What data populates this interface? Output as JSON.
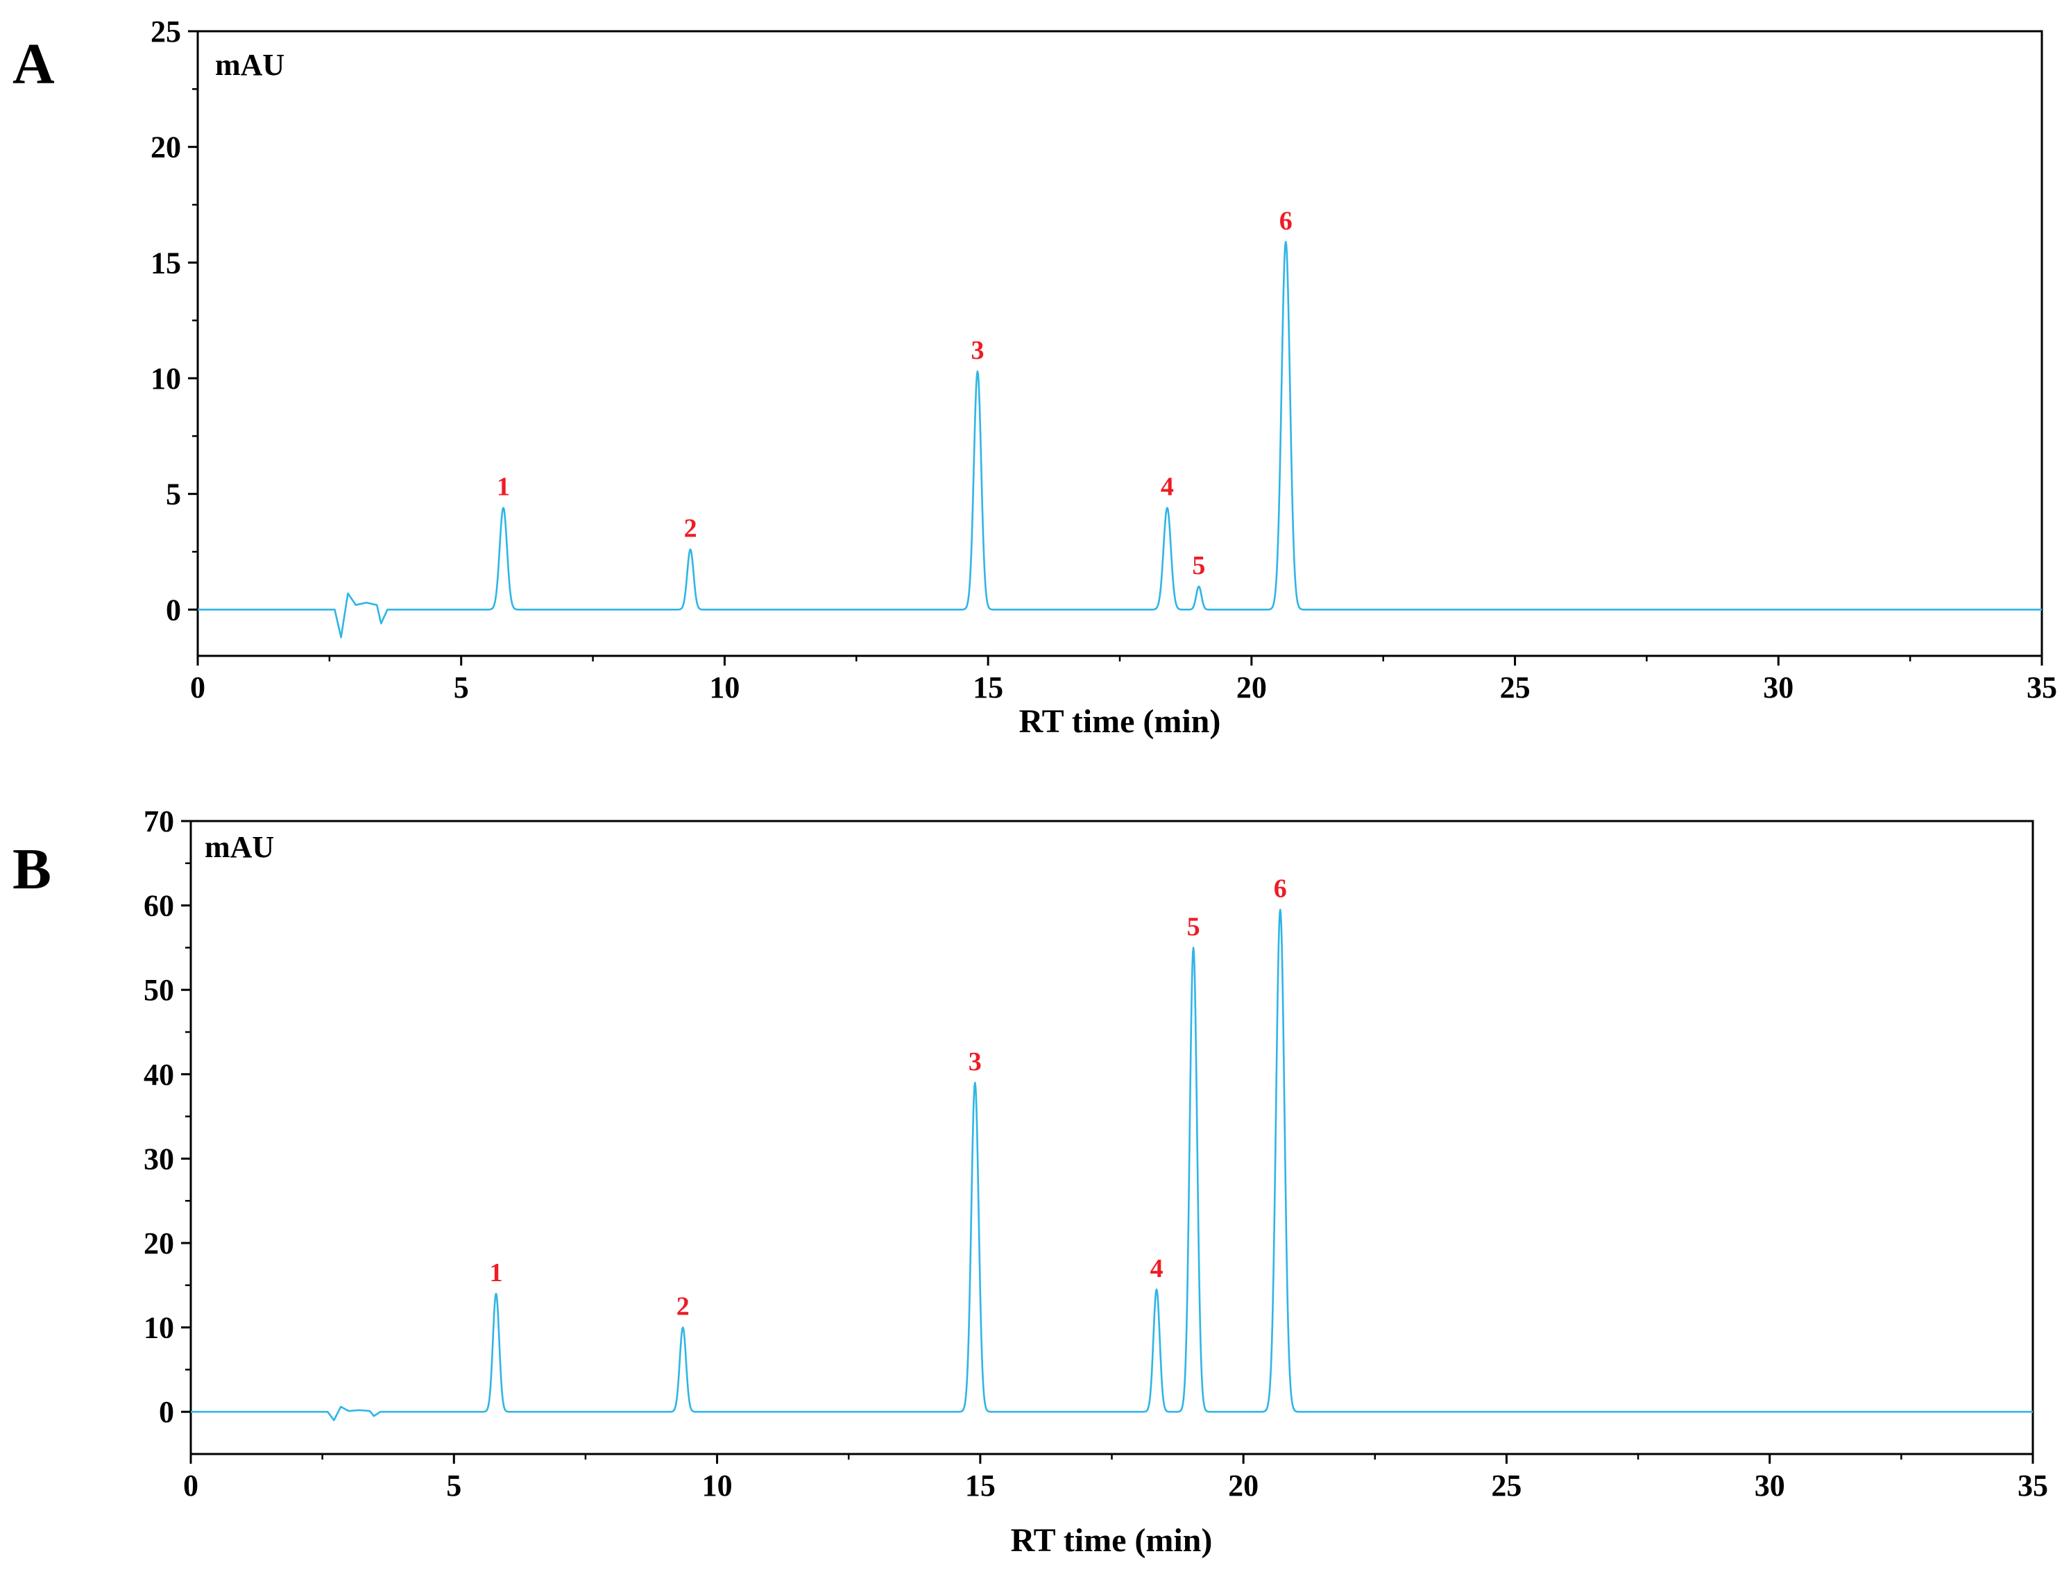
{
  "chart_data": [
    {
      "type": "line",
      "panel_label": "A",
      "unit_label": "mAU",
      "xlabel": "RT time (min)",
      "ylabel": "",
      "xlim": [
        0,
        35
      ],
      "ylim": [
        -2,
        25
      ],
      "x_ticks": [
        0,
        5,
        10,
        15,
        20,
        25,
        30,
        35
      ],
      "y_ticks": [
        0,
        5,
        10,
        15,
        20,
        25
      ],
      "grid": false,
      "series_color": "#2fb5e6",
      "label_color": "#ee1c25",
      "baseline": 0,
      "disturbance": [
        [
          2.6,
          0
        ],
        [
          2.72,
          -1.2
        ],
        [
          2.85,
          0.7
        ],
        [
          3.0,
          0.2
        ],
        [
          3.2,
          0.3
        ],
        [
          3.4,
          0.2
        ],
        [
          3.48,
          -0.6
        ],
        [
          3.6,
          0
        ]
      ],
      "peaks": [
        {
          "label": "1",
          "x": 5.8,
          "y": 4.4,
          "width": 0.07
        },
        {
          "label": "2",
          "x": 9.35,
          "y": 2.6,
          "width": 0.06
        },
        {
          "label": "3",
          "x": 14.8,
          "y": 10.3,
          "width": 0.07
        },
        {
          "label": "4",
          "x": 18.4,
          "y": 4.4,
          "width": 0.07
        },
        {
          "label": "5",
          "x": 19.0,
          "y": 1.0,
          "width": 0.05
        },
        {
          "label": "6",
          "x": 20.65,
          "y": 15.9,
          "width": 0.08
        }
      ]
    },
    {
      "type": "line",
      "panel_label": "B",
      "unit_label": "mAU",
      "xlabel": "RT time (min)",
      "ylabel": "",
      "xlim": [
        0,
        35
      ],
      "ylim": [
        -5,
        70
      ],
      "x_ticks": [
        0,
        5,
        10,
        15,
        20,
        25,
        30,
        35
      ],
      "y_ticks": [
        0,
        10,
        20,
        30,
        40,
        50,
        60,
        70
      ],
      "grid": false,
      "series_color": "#2fb5e6",
      "label_color": "#ee1c25",
      "baseline": 0,
      "disturbance": [
        [
          2.6,
          0
        ],
        [
          2.72,
          -1.0
        ],
        [
          2.85,
          0.6
        ],
        [
          3.0,
          0.1
        ],
        [
          3.2,
          0.2
        ],
        [
          3.4,
          0.1
        ],
        [
          3.48,
          -0.5
        ],
        [
          3.6,
          0
        ]
      ],
      "peaks": [
        {
          "label": "1",
          "x": 5.8,
          "y": 14.0,
          "width": 0.06
        },
        {
          "label": "2",
          "x": 9.35,
          "y": 10.0,
          "width": 0.06
        },
        {
          "label": "3",
          "x": 14.9,
          "y": 39.0,
          "width": 0.07
        },
        {
          "label": "4",
          "x": 18.35,
          "y": 14.5,
          "width": 0.06
        },
        {
          "label": "5",
          "x": 19.05,
          "y": 55.0,
          "width": 0.07
        },
        {
          "label": "6",
          "x": 20.7,
          "y": 59.5,
          "width": 0.08
        }
      ]
    }
  ]
}
